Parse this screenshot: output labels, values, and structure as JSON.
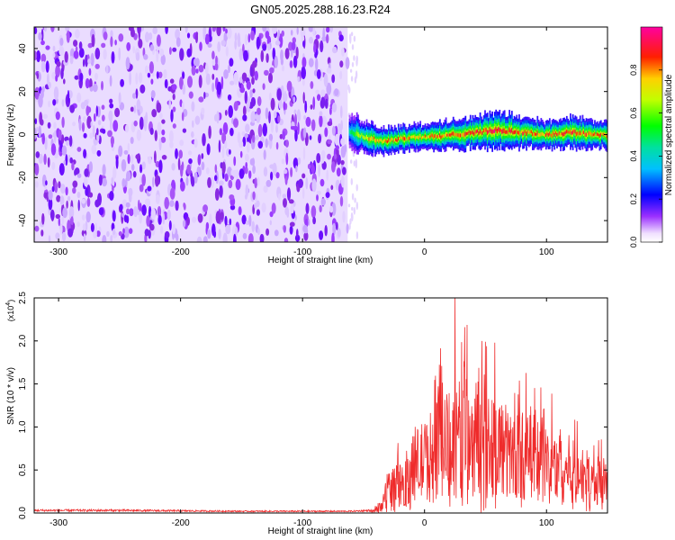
{
  "figure_title": "GN05.2025.288.16.23.R24",
  "chart_data": [
    {
      "type": "heatmap",
      "panel": "spectrogram",
      "xlabel": "Height of straight line (km)",
      "ylabel": "Frequency (Hz)",
      "xlim": [
        -320,
        150
      ],
      "ylim": [
        -50,
        50
      ],
      "xticks": [
        -300,
        -200,
        -100,
        0,
        100
      ],
      "yticks": [
        -40,
        -20,
        0,
        20,
        40
      ],
      "noise_region": {
        "x_start": -320,
        "x_end": -63,
        "freq_range": [
          -50,
          50
        ],
        "typical_amplitude": 0.1
      },
      "signal_track": {
        "x": [
          -62,
          -55,
          -45,
          -35,
          -20,
          -5,
          10,
          25,
          40,
          60,
          80,
          100,
          120,
          140,
          150
        ],
        "freq": [
          2,
          0,
          -2,
          -3,
          -2,
          -1,
          -1,
          0,
          1,
          2,
          1,
          0,
          1,
          0,
          0
        ],
        "width_hz": [
          7,
          8,
          7,
          6,
          6,
          6,
          6,
          7,
          7,
          8,
          7,
          6,
          7,
          6,
          6
        ],
        "peak_amplitude": [
          0.45,
          0.65,
          0.8,
          0.85,
          0.85,
          0.8,
          0.85,
          0.85,
          0.9,
          0.95,
          0.9,
          0.85,
          0.9,
          0.85,
          0.85
        ]
      },
      "colorbar": {
        "label": "Normalized spectral amplitude",
        "range": [
          0,
          1
        ],
        "ticks": [
          "0.0",
          "0.2",
          "0.4",
          "0.6",
          "0.8"
        ]
      }
    },
    {
      "type": "line",
      "panel": "snr",
      "xlabel": "Height of straight line (km)",
      "ylabel": "SNR (10 * v/v)",
      "multiplier_label": "(x10",
      "multiplier_exp": "4",
      "xlim": [
        -320,
        150
      ],
      "ylim": [
        0,
        2.5
      ],
      "xticks": [
        -300,
        -200,
        -100,
        0,
        100
      ],
      "yticks": [
        "0.0",
        "0.5",
        "1.0",
        "1.5",
        "2.0",
        "2.5"
      ],
      "color": "#ef2b2b",
      "series": [
        {
          "name": "SNR",
          "envelope_x": [
            -320,
            -250,
            -150,
            -60,
            -45,
            -40,
            -35,
            -30,
            -25,
            -20,
            -15,
            -10,
            -5,
            0,
            10,
            20,
            30,
            40,
            50,
            60,
            70,
            80,
            90,
            100,
            110,
            120,
            130,
            140,
            150
          ],
          "envelope_y": [
            0.03,
            0.03,
            0.02,
            0.02,
            0.03,
            0.05,
            0.12,
            0.45,
            0.45,
            0.5,
            0.6,
            0.75,
            0.85,
            0.9,
            1.1,
            1.2,
            1.3,
            1.35,
            1.25,
            1.2,
            1.0,
            1.0,
            0.95,
            0.85,
            0.8,
            0.75,
            0.65,
            0.55,
            0.55
          ],
          "peak_x": 25,
          "peak_y": 2.5
        }
      ]
    }
  ]
}
